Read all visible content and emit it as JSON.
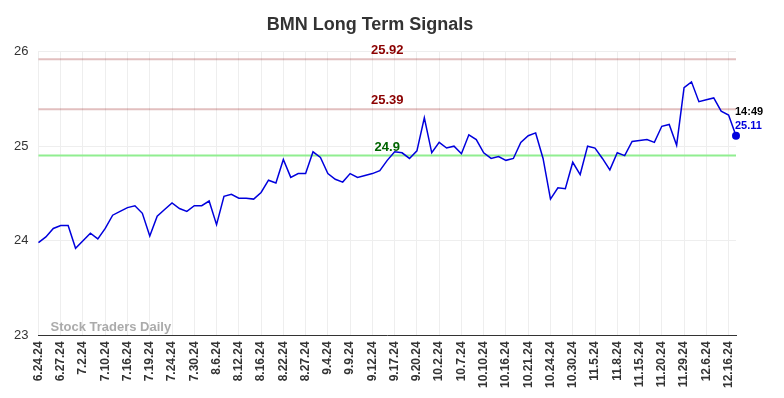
{
  "chart_data": {
    "type": "line",
    "title": "BMN Long Term Signals",
    "watermark": "Stock Traders Daily",
    "categories": [
      "6.24.24",
      null,
      null,
      "6.27.24",
      null,
      null,
      "7.2.24",
      null,
      null,
      "7.10.24",
      null,
      null,
      "7.16.24",
      null,
      null,
      "7.19.24",
      null,
      null,
      "7.24.24",
      null,
      null,
      "7.30.24",
      null,
      null,
      "8.6.24",
      null,
      null,
      "8.12.24",
      null,
      null,
      "8.16.24",
      null,
      null,
      "8.22.24",
      null,
      null,
      "8.27.24",
      null,
      null,
      "9.4.24",
      null,
      null,
      "9.9.24",
      null,
      null,
      "9.12.24",
      null,
      null,
      "9.17.24",
      null,
      null,
      "9.20.24",
      null,
      null,
      "10.2.24",
      null,
      null,
      "10.7.24",
      null,
      null,
      "10.10.24",
      null,
      null,
      "10.16.24",
      null,
      null,
      "10.21.24",
      null,
      null,
      "10.24.24",
      null,
      null,
      "10.30.24",
      null,
      null,
      "11.5.24",
      null,
      null,
      "11.8.24",
      null,
      null,
      "11.15.24",
      null,
      null,
      "11.20.24",
      null,
      null,
      "11.29.24",
      null,
      null,
      "12.6.24",
      null,
      null,
      "12.16.24",
      null
    ],
    "values": [
      23.98,
      24.04,
      24.13,
      24.16,
      24.16,
      23.92,
      24.0,
      24.08,
      24.02,
      24.13,
      24.27,
      24.31,
      24.35,
      24.37,
      24.29,
      24.05,
      24.26,
      24.33,
      24.4,
      24.34,
      24.31,
      24.37,
      24.37,
      24.42,
      24.17,
      24.47,
      24.49,
      24.45,
      24.45,
      24.44,
      24.51,
      24.64,
      24.61,
      24.86,
      24.67,
      24.71,
      24.71,
      24.94,
      24.88,
      24.71,
      24.65,
      24.62,
      24.71,
      24.67,
      24.69,
      24.71,
      24.74,
      24.85,
      24.94,
      24.93,
      24.87,
      24.95,
      25.3,
      24.93,
      25.04,
      24.98,
      25.0,
      24.92,
      25.12,
      25.07,
      24.93,
      24.87,
      24.89,
      24.85,
      24.87,
      25.04,
      25.11,
      25.14,
      24.87,
      24.44,
      24.56,
      24.55,
      24.83,
      24.7,
      25.0,
      24.98,
      24.87,
      24.75,
      24.93,
      24.9,
      25.05,
      25.06,
      25.07,
      25.04,
      25.21,
      25.23,
      25.01,
      25.62,
      25.68,
      25.47,
      25.49,
      25.51,
      25.37,
      25.33,
      25.11
    ],
    "color": "#0000dd",
    "ylim": [
      23,
      26
    ],
    "yticks": [
      23,
      24,
      25,
      26
    ],
    "grid": true,
    "reference_lines": [
      {
        "value": 25.92,
        "label": "25.92",
        "color": "#8b0000"
      },
      {
        "value": 25.39,
        "label": "25.39",
        "color": "#8b0000"
      },
      {
        "value": 24.9,
        "label": "24.9",
        "color": "#006400"
      }
    ],
    "last_point": {
      "time": "14:49",
      "value": 25.11
    }
  }
}
